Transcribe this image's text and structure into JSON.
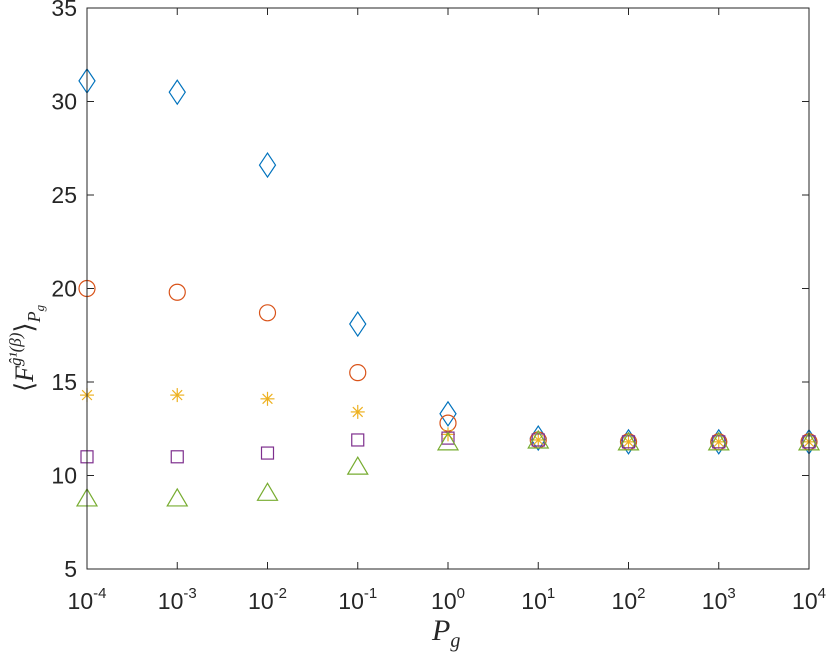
{
  "chart_data": {
    "type": "scatter",
    "title": "",
    "xlabel": {
      "base": "P",
      "sub": "g"
    },
    "ylabel": {
      "open": "⟨",
      "base": "F",
      "sup": "ĝ¹(β)",
      "close": "⟩",
      "sub": "P",
      "subsub": "g"
    },
    "x_scale": "log",
    "xlim": [
      0.0001,
      10000
    ],
    "ylim": [
      5,
      35
    ],
    "grid": false,
    "x_ticks": [
      {
        "value": 0.0001,
        "base": "10",
        "exp": "-4"
      },
      {
        "value": 0.001,
        "base": "10",
        "exp": "-3"
      },
      {
        "value": 0.01,
        "base": "10",
        "exp": "-2"
      },
      {
        "value": 0.1,
        "base": "10",
        "exp": "-1"
      },
      {
        "value": 1,
        "base": "10",
        "exp": "0"
      },
      {
        "value": 10,
        "base": "10",
        "exp": "1"
      },
      {
        "value": 100,
        "base": "10",
        "exp": "2"
      },
      {
        "value": 1000,
        "base": "10",
        "exp": "3"
      },
      {
        "value": 10000,
        "base": "10",
        "exp": "4"
      }
    ],
    "y_ticks": [
      "5",
      "10",
      "15",
      "20",
      "25",
      "30",
      "35"
    ],
    "x": [
      0.0001,
      0.001,
      0.01,
      0.1,
      1,
      10,
      100,
      1000,
      10000
    ],
    "series": [
      {
        "marker": "diamond",
        "color": "#0072BD",
        "values": [
          31.1,
          30.5,
          26.6,
          18.1,
          13.3,
          12.0,
          11.8,
          11.8,
          11.8
        ]
      },
      {
        "marker": "circle",
        "color": "#D95319",
        "values": [
          20.0,
          19.8,
          18.7,
          15.5,
          12.8,
          11.9,
          11.8,
          11.8,
          11.8
        ]
      },
      {
        "marker": "asterisk",
        "color": "#EDB120",
        "values": [
          14.3,
          14.3,
          14.1,
          13.4,
          12.2,
          11.9,
          11.8,
          11.8,
          11.8
        ]
      },
      {
        "marker": "square",
        "color": "#7E2F8E",
        "values": [
          11.0,
          11.0,
          11.2,
          11.9,
          12.0,
          11.9,
          11.8,
          11.8,
          11.8
        ]
      },
      {
        "marker": "triangle",
        "color": "#77AC30",
        "values": [
          8.8,
          8.8,
          9.1,
          10.5,
          11.8,
          11.9,
          11.8,
          11.8,
          11.8
        ]
      }
    ]
  }
}
